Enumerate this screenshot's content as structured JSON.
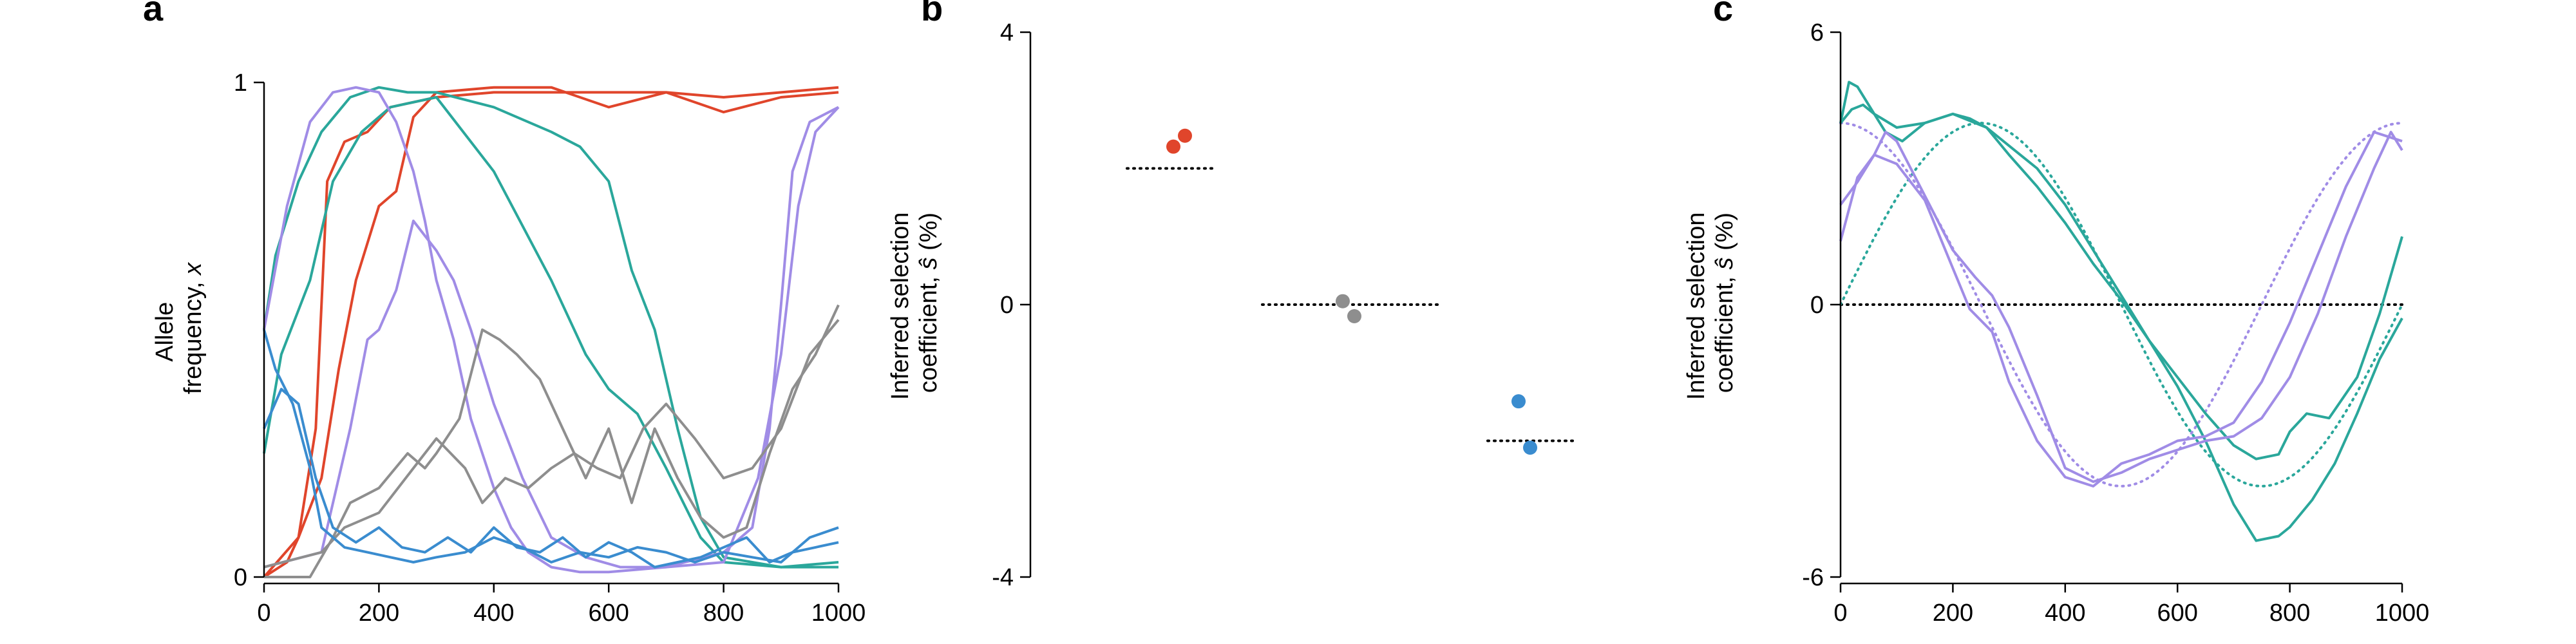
{
  "colors": {
    "red": "#e0452b",
    "teal": "#2aa79b",
    "purple": "#a08ce6",
    "gray": "#8e8e8e",
    "blue": "#3a8ccf",
    "black": "#000000"
  },
  "chart_data": [
    {
      "panel": "a",
      "type": "line",
      "ylabel_line1": "Allele",
      "ylabel_line2": "frequency, ",
      "ylabel_var": "x",
      "xlim": [
        0,
        1000
      ],
      "ylim": [
        0,
        1
      ],
      "xticks": [
        0,
        200,
        400,
        600,
        800,
        1000
      ],
      "yticks": [
        0,
        1
      ],
      "series": [
        {
          "color": "red",
          "x": [
            0,
            40,
            60,
            90,
            110,
            140,
            180,
            220,
            300,
            400,
            500,
            600,
            700,
            800,
            900,
            1000
          ],
          "y": [
            0,
            0.03,
            0.08,
            0.3,
            0.8,
            0.88,
            0.9,
            0.95,
            0.97,
            0.98,
            0.98,
            0.98,
            0.98,
            0.97,
            0.98,
            0.99
          ]
        },
        {
          "color": "red",
          "x": [
            0,
            60,
            100,
            130,
            160,
            200,
            230,
            260,
            300,
            400,
            500,
            600,
            700,
            800,
            900,
            1000
          ],
          "y": [
            0,
            0.08,
            0.2,
            0.42,
            0.6,
            0.75,
            0.78,
            0.93,
            0.98,
            0.99,
            0.99,
            0.95,
            0.98,
            0.94,
            0.97,
            0.98
          ]
        },
        {
          "color": "teal",
          "x": [
            0,
            20,
            60,
            100,
            150,
            200,
            250,
            300,
            400,
            500,
            550,
            600,
            640,
            680,
            720,
            760,
            800,
            900,
            1000
          ],
          "y": [
            0.5,
            0.65,
            0.8,
            0.9,
            0.97,
            0.99,
            0.98,
            0.98,
            0.95,
            0.9,
            0.87,
            0.8,
            0.62,
            0.5,
            0.3,
            0.12,
            0.04,
            0.02,
            0.02
          ]
        },
        {
          "color": "teal",
          "x": [
            0,
            30,
            80,
            120,
            170,
            220,
            300,
            400,
            500,
            540,
            560,
            600,
            650,
            700,
            760,
            800,
            900,
            1000
          ],
          "y": [
            0.25,
            0.45,
            0.6,
            0.8,
            0.9,
            0.95,
            0.97,
            0.82,
            0.6,
            0.5,
            0.45,
            0.38,
            0.33,
            0.22,
            0.08,
            0.03,
            0.02,
            0.03
          ]
        },
        {
          "color": "purple",
          "x": [
            0,
            40,
            80,
            120,
            160,
            200,
            230,
            260,
            280,
            300,
            330,
            360,
            400,
            430,
            460,
            500,
            550,
            600,
            700,
            800,
            850,
            880,
            900,
            920,
            950,
            1000
          ],
          "y": [
            0.5,
            0.75,
            0.92,
            0.98,
            0.99,
            0.98,
            0.92,
            0.82,
            0.72,
            0.6,
            0.48,
            0.32,
            0.18,
            0.1,
            0.05,
            0.02,
            0.01,
            0.01,
            0.02,
            0.05,
            0.1,
            0.3,
            0.55,
            0.82,
            0.92,
            0.95
          ]
        },
        {
          "color": "purple",
          "x": [
            0,
            100,
            150,
            180,
            200,
            230,
            260,
            300,
            330,
            360,
            400,
            450,
            500,
            560,
            620,
            700,
            800,
            860,
            900,
            930,
            960,
            1000
          ],
          "y": [
            0.02,
            0.05,
            0.3,
            0.48,
            0.5,
            0.58,
            0.72,
            0.66,
            0.6,
            0.5,
            0.35,
            0.2,
            0.08,
            0.04,
            0.02,
            0.02,
            0.03,
            0.2,
            0.45,
            0.75,
            0.9,
            0.95
          ]
        },
        {
          "color": "gray",
          "x": [
            0,
            80,
            120,
            150,
            200,
            250,
            280,
            300,
            340,
            380,
            410,
            440,
            480,
            520,
            560,
            600,
            640,
            680,
            720,
            760,
            800,
            840,
            880,
            920,
            960,
            1000
          ],
          "y": [
            0,
            0,
            0.08,
            0.15,
            0.18,
            0.25,
            0.22,
            0.25,
            0.32,
            0.5,
            0.48,
            0.45,
            0.4,
            0.3,
            0.2,
            0.3,
            0.15,
            0.3,
            0.2,
            0.12,
            0.08,
            0.1,
            0.25,
            0.38,
            0.45,
            0.55
          ]
        },
        {
          "color": "gray",
          "x": [
            0,
            100,
            140,
            200,
            260,
            300,
            350,
            380,
            420,
            460,
            500,
            540,
            580,
            620,
            660,
            700,
            750,
            800,
            850,
            900,
            950,
            1000
          ],
          "y": [
            0.02,
            0.05,
            0.1,
            0.13,
            0.22,
            0.28,
            0.22,
            0.15,
            0.2,
            0.18,
            0.22,
            0.25,
            0.22,
            0.2,
            0.3,
            0.35,
            0.28,
            0.2,
            0.22,
            0.3,
            0.45,
            0.52
          ]
        },
        {
          "color": "blue",
          "x": [
            0,
            20,
            50,
            80,
            100,
            140,
            180,
            220,
            260,
            300,
            350,
            400,
            450,
            500,
            550,
            600,
            650,
            700,
            750,
            800,
            850,
            900,
            950,
            1000
          ],
          "y": [
            0.5,
            0.42,
            0.35,
            0.22,
            0.1,
            0.06,
            0.05,
            0.04,
            0.03,
            0.04,
            0.05,
            0.08,
            0.06,
            0.03,
            0.05,
            0.04,
            0.06,
            0.05,
            0.03,
            0.05,
            0.04,
            0.03,
            0.08,
            0.1
          ]
        },
        {
          "color": "blue",
          "x": [
            0,
            30,
            60,
            90,
            120,
            160,
            200,
            240,
            280,
            320,
            360,
            400,
            440,
            480,
            520,
            560,
            600,
            640,
            680,
            720,
            760,
            800,
            840,
            880,
            920,
            960,
            1000
          ],
          "y": [
            0.3,
            0.38,
            0.35,
            0.2,
            0.1,
            0.07,
            0.1,
            0.06,
            0.05,
            0.08,
            0.05,
            0.1,
            0.06,
            0.05,
            0.08,
            0.04,
            0.07,
            0.05,
            0.02,
            0.03,
            0.04,
            0.06,
            0.08,
            0.03,
            0.05,
            0.06,
            0.07
          ]
        }
      ]
    },
    {
      "panel": "b",
      "type": "scatter",
      "ylabel_line1": "Inferred selection",
      "ylabel_line2": "coefficient, ",
      "ylabel_var": "ŝ",
      "ylabel_unit": " (%)",
      "ylim": [
        -4,
        4
      ],
      "yticks": [
        -4,
        0,
        4
      ],
      "groups": [
        {
          "color": "red",
          "true_s": 2,
          "points": [
            2.32,
            2.48
          ]
        },
        {
          "color": "gray",
          "true_s": 0,
          "points": [
            0.05,
            -0.17
          ]
        },
        {
          "color": "blue",
          "true_s": -2,
          "points": [
            -1.42,
            -2.1
          ]
        }
      ]
    },
    {
      "panel": "c",
      "type": "line",
      "ylabel_line1": "Inferred selection",
      "ylabel_line2": "coefficient, ",
      "ylabel_var": "ŝ",
      "ylabel_unit": " (%)",
      "xlim": [
        0,
        1000
      ],
      "ylim": [
        -6,
        6
      ],
      "xticks": [
        0,
        200,
        400,
        600,
        800,
        1000
      ],
      "yticks": [
        -6,
        0,
        6
      ],
      "true_series": [
        {
          "color": "teal",
          "amplitude": 4,
          "description": "4 sin(2πt/1000)"
        },
        {
          "color": "purple",
          "amplitude": 4,
          "description": "4 cos(2πt/1000)"
        }
      ],
      "series": [
        {
          "color": "teal",
          "x": [
            0,
            15,
            30,
            50,
            80,
            110,
            150,
            200,
            230,
            260,
            300,
            350,
            400,
            450,
            500,
            550,
            600,
            650,
            700,
            740,
            780,
            800,
            830,
            870,
            920,
            960,
            1000
          ],
          "y": [
            4,
            4.9,
            4.8,
            4.4,
            3.8,
            3.6,
            4.0,
            4.2,
            4.1,
            3.9,
            3.3,
            2.6,
            1.8,
            0.9,
            0.1,
            -0.8,
            -1.6,
            -2.4,
            -3.1,
            -3.4,
            -3.3,
            -2.8,
            -2.4,
            -2.5,
            -1.6,
            -0.2,
            1.5
          ]
        },
        {
          "color": "teal",
          "x": [
            0,
            20,
            40,
            60,
            100,
            150,
            200,
            260,
            300,
            350,
            400,
            450,
            500,
            550,
            600,
            650,
            700,
            740,
            780,
            800,
            840,
            880,
            920,
            960,
            1000
          ],
          "y": [
            4,
            4.3,
            4.4,
            4.2,
            3.9,
            4.0,
            4.2,
            3.9,
            3.5,
            3.0,
            2.2,
            1.2,
            0.2,
            -0.8,
            -1.8,
            -3.0,
            -4.4,
            -5.2,
            -5.1,
            -4.9,
            -4.3,
            -3.5,
            -2.4,
            -1.2,
            -0.3
          ]
        },
        {
          "color": "purple",
          "x": [
            0,
            30,
            60,
            100,
            150,
            200,
            230,
            270,
            300,
            350,
            400,
            450,
            500,
            550,
            600,
            650,
            700,
            750,
            800,
            850,
            900,
            950,
            1000
          ],
          "y": [
            1.4,
            2.8,
            3.3,
            3.1,
            2.3,
            0.8,
            -0.1,
            -0.6,
            -1.7,
            -3.0,
            -3.8,
            -4.0,
            -3.5,
            -3.3,
            -3.0,
            -2.9,
            -2.6,
            -1.7,
            -0.4,
            1.1,
            2.6,
            3.8,
            3.6
          ]
        },
        {
          "color": "purple",
          "x": [
            0,
            30,
            60,
            80,
            100,
            150,
            200,
            240,
            270,
            300,
            350,
            400,
            450,
            500,
            550,
            600,
            650,
            700,
            750,
            800,
            850,
            900,
            950,
            980,
            1000
          ],
          "y": [
            2.2,
            2.7,
            3.3,
            3.8,
            3.6,
            2.4,
            1.2,
            0.6,
            0.2,
            -0.5,
            -2.0,
            -3.6,
            -3.9,
            -3.7,
            -3.4,
            -3.2,
            -3.0,
            -2.9,
            -2.5,
            -1.6,
            -0.2,
            1.5,
            3.0,
            3.8,
            3.4
          ]
        }
      ]
    }
  ]
}
